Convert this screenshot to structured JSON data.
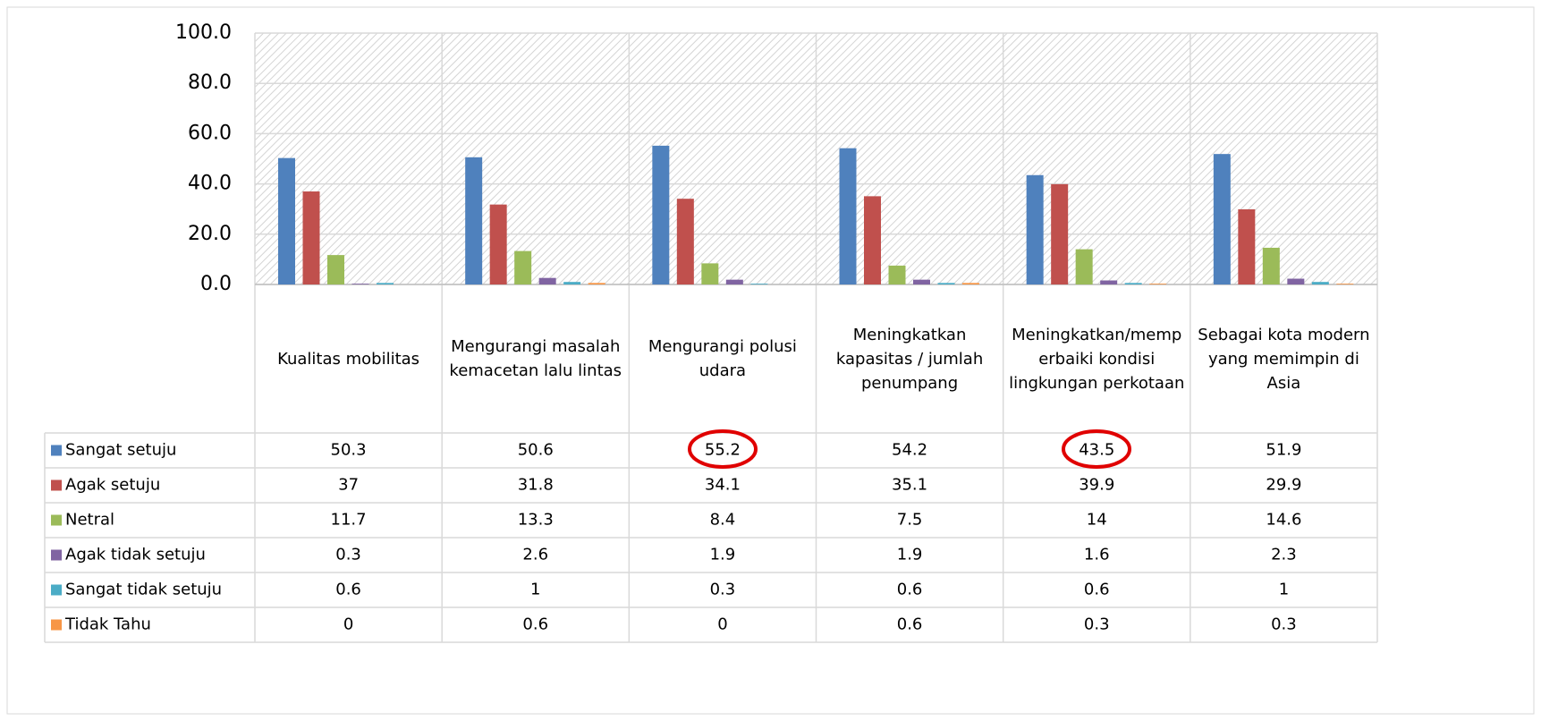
{
  "chart_data": {
    "type": "bar",
    "categories": [
      "Kualitas mobilitas",
      "Mengurangi masalah kemacetan lalu lintas",
      "Mengurangi polusi udara",
      "Meningkatkan kapasitas / jumlah penumpang",
      "Meningkatkan/memperbaiki kondisi lingkungan perkotaan",
      "Sebagai kota modern yang memimpin di Asia"
    ],
    "series": [
      {
        "name": "Sangat setuju",
        "color": "#4f81bd",
        "values": [
          50.3,
          50.6,
          55.2,
          54.2,
          43.5,
          51.9
        ]
      },
      {
        "name": "Agak setuju",
        "color": "#c0504d",
        "values": [
          37,
          31.8,
          34.1,
          35.1,
          39.9,
          29.9
        ]
      },
      {
        "name": "Netral",
        "color": "#9bbb59",
        "values": [
          11.7,
          13.3,
          8.4,
          7.5,
          14,
          14.6
        ]
      },
      {
        "name": "Agak tidak setuju",
        "color": "#8064a2",
        "values": [
          0.3,
          2.6,
          1.9,
          1.9,
          1.6,
          2.3
        ]
      },
      {
        "name": "Sangat tidak setuju",
        "color": "#4bacc6",
        "values": [
          0.6,
          1,
          0.3,
          0.6,
          0.6,
          1
        ]
      },
      {
        "name": "Tidak Tahu",
        "color": "#f79646",
        "values": [
          0,
          0.6,
          0,
          0.6,
          0.3,
          0.3
        ]
      }
    ],
    "ylim": [
      0,
      100
    ],
    "yticks": [
      {
        "value": 0,
        "label": "0.0"
      },
      {
        "value": 20,
        "label": "20.0"
      },
      {
        "value": 40,
        "label": "40.0"
      },
      {
        "value": 60,
        "label": "60.0"
      },
      {
        "value": 80,
        "label": "80.0"
      },
      {
        "value": 100,
        "label": "100.0"
      }
    ],
    "grid": true
  }
}
